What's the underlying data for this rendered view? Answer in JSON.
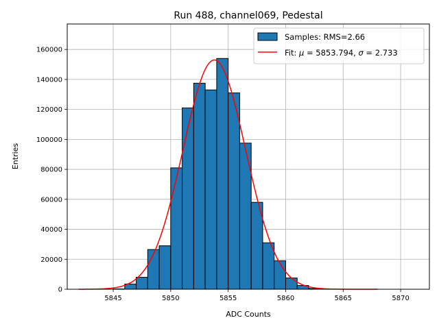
{
  "chart_data": {
    "type": "bar",
    "title": "Run 488, channel069, Pedestal",
    "xlabel": "ADC Counts",
    "ylabel": "Entries",
    "xlim": [
      5841,
      5872.5
    ],
    "ylim": [
      0,
      177000
    ],
    "grid": true,
    "legend_position": "top-right",
    "xticks": [
      5845,
      5850,
      5855,
      5860,
      5865,
      5870
    ],
    "yticks": [
      0,
      20000,
      40000,
      60000,
      80000,
      100000,
      120000,
      140000,
      160000
    ],
    "histogram": {
      "name": "Samples: RMS=2.66",
      "color": "#1f77b4",
      "edgecolor": "#000000",
      "bins": [
        5845,
        5846,
        5847,
        5848,
        5849,
        5850,
        5851,
        5852,
        5853,
        5854,
        5855,
        5856,
        5857,
        5858,
        5859,
        5860,
        5861,
        5862,
        5863
      ],
      "values": [
        200,
        3500,
        8000,
        26500,
        29000,
        81000,
        121000,
        137500,
        133000,
        154000,
        131000,
        97500,
        58000,
        31000,
        19000,
        7500,
        2500,
        500
      ],
      "bin_width": 1
    },
    "fit": {
      "name_prefix": "Fit: ",
      "name_mu": "μ",
      "name_mid": " = 5853.794, ",
      "name_sigma": "σ",
      "name_suffix": " = 2.733",
      "mu": 5853.794,
      "sigma": 2.733,
      "amplitude": 153000,
      "x_range": [
        5842,
        5868
      ],
      "color": "#ff0000"
    }
  }
}
